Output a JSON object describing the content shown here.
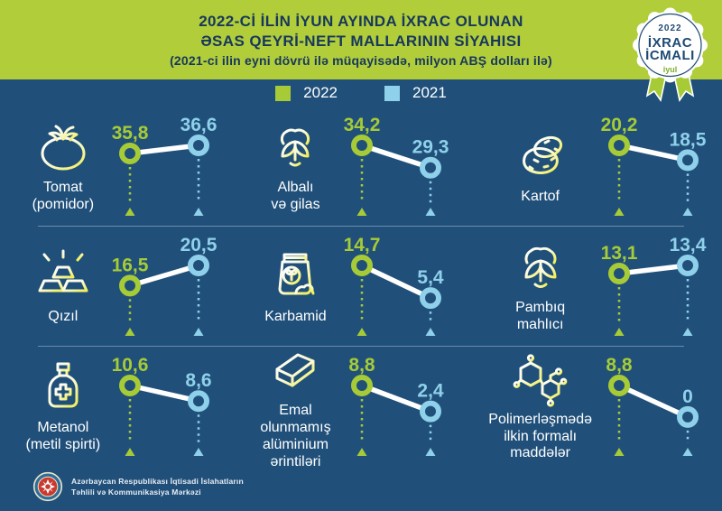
{
  "header": {
    "title_line1": "2022-Cİ İLİN İYUN AYINDA İXRAC OLUNAN",
    "title_line2": "ƏSAS QEYRİ-NEFT MALLARININ SİYAHISI",
    "title_line3": "(2021-ci ilin eyni dövrü ilə müqayisədə, milyon ABŞ dolları ilə)"
  },
  "badge": {
    "year": "2022",
    "line1": "İXRAC",
    "line2": "İCMALI",
    "month": "iyul"
  },
  "legend": {
    "items": [
      {
        "label": "2022",
        "color": "#a6cb37"
      },
      {
        "label": "2021",
        "color": "#8fd0ea"
      }
    ]
  },
  "colors": {
    "navy_background": "#20507a",
    "header_green": "#b1cd3a",
    "title_text": "#17375e",
    "green_2022": "#a6cb37",
    "blue_2021": "#8fd0ea",
    "white_line": "#ffffff",
    "icon_yellow": "#f1ee52"
  },
  "chart_data": {
    "type": "line",
    "title": "2022-Cİ İLİN İYUN AYINDA İXRAC OLUNAN ƏSAS QEYRİ-NEFT MALLARININ SİYAHISI",
    "subtitle": "(2021-ci ilin eyni dövrü ilə müqayisədə, milyon ABŞ dolları ilə)",
    "unit": "milyon ABŞ dolları",
    "series_labels": [
      "2022",
      "2021"
    ],
    "layout": "3x3 grid of slope mini-charts, 2022 point left (green), 2021 point right (blue)",
    "items": [
      {
        "label": "Tomat\n(pomidor)",
        "icon": "tomato-icon",
        "v2022": 35.8,
        "v2021": 36.6,
        "d2022": "35,8",
        "d2021": "36,6"
      },
      {
        "label": "Albalı\nvə gilas",
        "icon": "cherry-icon",
        "v2022": 34.2,
        "v2021": 29.3,
        "d2022": "34,2",
        "d2021": "29,3"
      },
      {
        "label": "Kartof",
        "icon": "potato-icon",
        "v2022": 20.2,
        "v2021": 18.5,
        "d2022": "20,2",
        "d2021": "18,5"
      },
      {
        "label": "Qızıl",
        "icon": "gold-bars-icon",
        "v2022": 16.5,
        "v2021": 20.5,
        "d2022": "16,5",
        "d2021": "20,5"
      },
      {
        "label": "Karbamid",
        "icon": "fertilizer-bag-icon",
        "v2022": 14.7,
        "v2021": 5.4,
        "d2022": "14,7",
        "d2021": "5,4"
      },
      {
        "label": "Pambıq\nmahlıcı",
        "icon": "cotton-icon",
        "v2022": 13.1,
        "v2021": 13.4,
        "d2022": "13,1",
        "d2021": "13,4"
      },
      {
        "label": "Metanol\n(metil spirti)",
        "icon": "methanol-bottle-icon",
        "v2022": 10.6,
        "v2021": 8.6,
        "d2022": "10,6",
        "d2021": "8,6"
      },
      {
        "label": "Emal olunmamış\nalüminium\nərintiləri",
        "icon": "aluminium-ingot-icon",
        "v2022": 8.8,
        "v2021": 2.4,
        "d2022": "8,8",
        "d2021": "2,4"
      },
      {
        "label": "Polimerləşmədə\nilkin formalı\nmaddələr",
        "icon": "polymer-molecule-icon",
        "v2022": 8.8,
        "v2021": 0,
        "d2022": "8,8",
        "d2021": "0"
      }
    ]
  },
  "footer": {
    "org_line1": "Azərbaycan Respublikası İqtisadi İslahatların",
    "org_line2": "Təhlili və Kommunikasiya Mərkəzi"
  }
}
